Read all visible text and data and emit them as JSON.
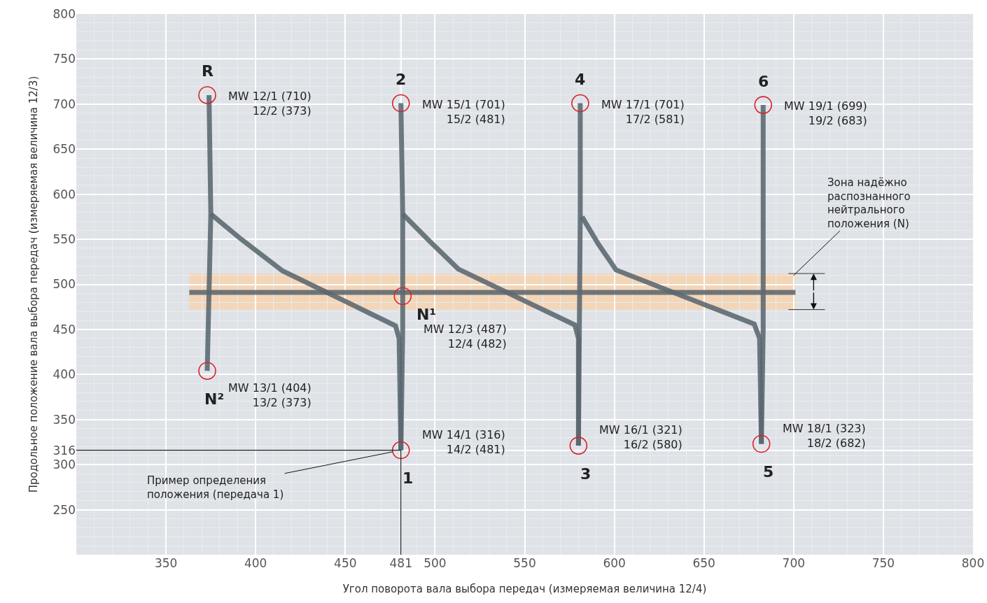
{
  "chart_data": {
    "type": "line",
    "xlabel": "Угол поворота вала выбора передач (измеряемая величина 12/4)",
    "ylabel": "Продольное положение вала выбора передач (измеряемая величина 12/3)",
    "xlim": [
      300,
      800
    ],
    "xticks": [
      350,
      400,
      450,
      481,
      500,
      550,
      600,
      650,
      700,
      750,
      800
    ],
    "ylim": [
      200,
      800
    ],
    "yticks": [
      250,
      300,
      316,
      350,
      400,
      450,
      500,
      550,
      600,
      650,
      700,
      750,
      800
    ],
    "grid": true,
    "marker": "none",
    "line_style": "solid",
    "series": [
      {
        "color": "#5b6770",
        "x": [
          374,
          375,
          373
        ],
        "values": [
          710,
          578,
          404
        ]
      },
      {
        "color": "#5b6770",
        "x": [
          375,
          392,
          415,
          478,
          480,
          481
        ],
        "values": [
          578,
          550,
          515,
          454,
          440,
          316
        ]
      },
      {
        "color": "#5b6770",
        "x": [
          481,
          482,
          482,
          481
        ],
        "values": [
          316,
          450,
          578,
          701
        ]
      },
      {
        "color": "#5b6770",
        "x": [
          482,
          497,
          513,
          578,
          580,
          580
        ],
        "values": [
          578,
          548,
          517,
          455,
          440,
          321
        ]
      },
      {
        "color": "#5b6770",
        "x": [
          580,
          581,
          581
        ],
        "values": [
          321,
          578,
          701
        ]
      },
      {
        "color": "#5b6770",
        "x": [
          582,
          591,
          601,
          678,
          681,
          682
        ],
        "values": [
          575,
          545,
          516,
          456,
          440,
          323
        ]
      },
      {
        "color": "#5b6770",
        "x": [
          682,
          683,
          683
        ],
        "values": [
          323,
          450,
          699
        ]
      },
      {
        "color": "#5b6770",
        "x": [
          363,
          701
        ],
        "values": [
          491,
          491
        ]
      },
      {
        "type": "scatter",
        "marker": "circle",
        "color": "#d8232a",
        "x": [
          373,
          373,
          481,
          481,
          580,
          581,
          682,
          683,
          482
        ],
        "values": [
          710,
          404,
          316,
          701,
          321,
          701,
          323,
          699,
          487
        ],
        "value_labels": [
          "MW 12/1 (710)\n12/2 (373)",
          "MW 13/1 (404)\n13/2 (373)",
          "MW 14/1 (316)\n14/2 (481)",
          "MW 15/1 (701)\n15/2 (481)",
          "MW 16/1 (321)\n16/2 (580)",
          "MW 17/1 (701)\n17/2 (581)",
          "MW 18/1 (323)\n18/2 (682)",
          "MW 19/1 (699)\n19/2 (683)",
          "MW 12/3 (487)\n12/4 (482)"
        ]
      }
    ],
    "bands": [
      {
        "axis": "y",
        "from": 472,
        "to": 512,
        "color": "#f5d3b3",
        "label": "Зона надёжно\nраспознанного\nнейтрального\nположения (N)"
      }
    ],
    "ref_lines": [
      {
        "axis": "x",
        "value": 481,
        "color": "#1a1a1a",
        "label": "Пример определения\nположения (передача 1)"
      },
      {
        "axis": "y",
        "value": 316,
        "color": "#1a1a1a"
      }
    ],
    "annotations": [
      {
        "text": "R",
        "x": 373,
        "y": 710
      },
      {
        "text": "2",
        "x": 481,
        "y": 701
      },
      {
        "text": "4",
        "x": 581,
        "y": 701
      },
      {
        "text": "6",
        "x": 683,
        "y": 699
      },
      {
        "text": "1",
        "x": 481,
        "y": 316
      },
      {
        "text": "3",
        "x": 580,
        "y": 321
      },
      {
        "text": "5",
        "x": 682,
        "y": 323
      },
      {
        "text": "N²",
        "x": 373,
        "y": 404
      },
      {
        "text": "N¹",
        "x": 482,
        "y": 487
      }
    ]
  }
}
